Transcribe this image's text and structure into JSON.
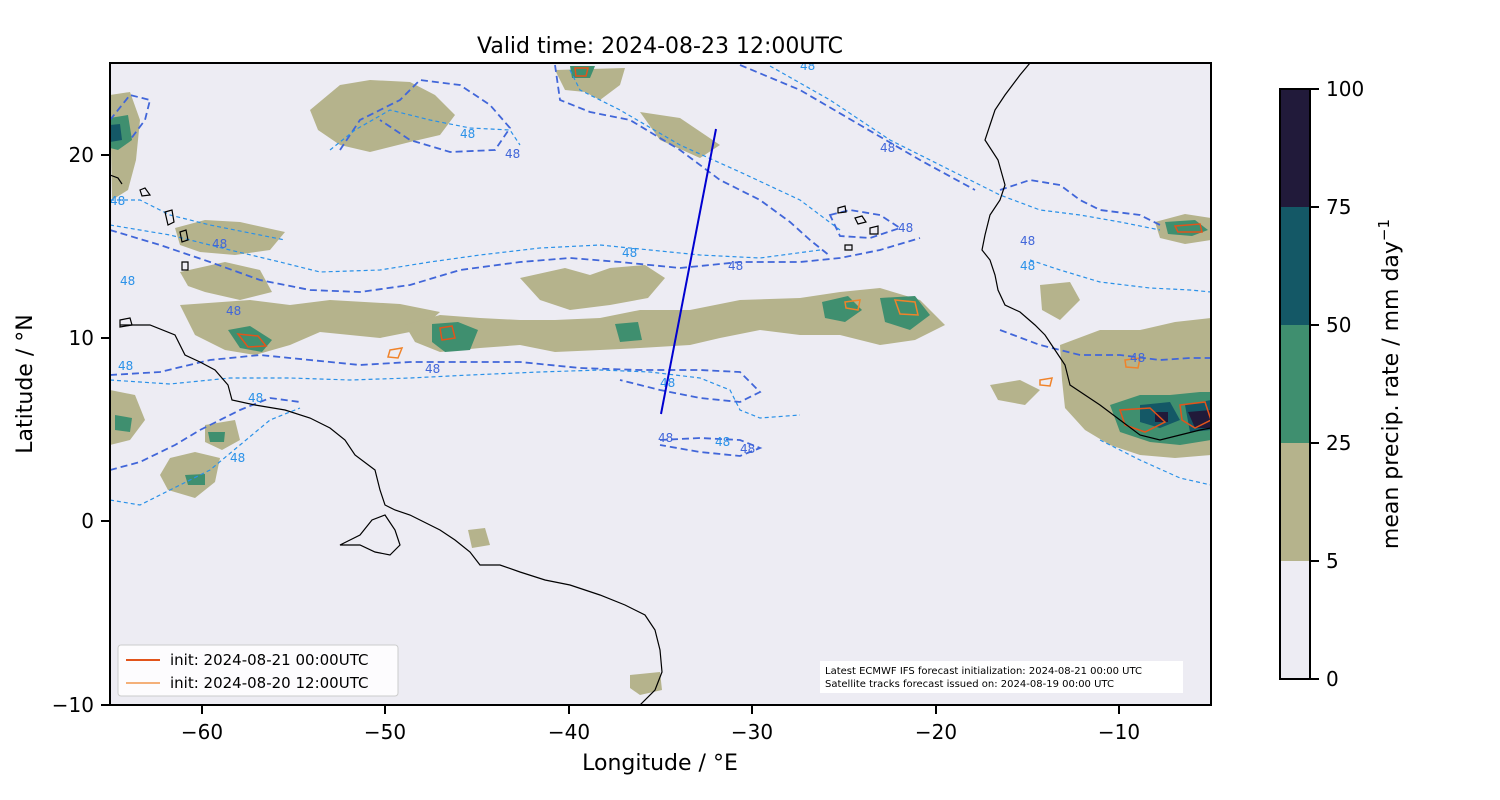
{
  "title": "Valid time: 2024-08-23 12:00UTC",
  "xaxis": {
    "label": "Longitude / °E",
    "ticks": [
      "−60",
      "−50",
      "−40",
      "−30",
      "−20",
      "−10"
    ]
  },
  "yaxis": {
    "label": "Latitude / °N",
    "ticks": [
      "20",
      "10",
      "0",
      "−10"
    ]
  },
  "colorbar": {
    "label": "mean precip. rate / mm day",
    "label_superscript": "−1",
    "ticks": [
      "0",
      "5",
      "25",
      "50",
      "75",
      "100"
    ],
    "colors": [
      "#edecf3",
      "#b5b38c",
      "#3f8f6f",
      "#145866",
      "#211a3a"
    ]
  },
  "legend": [
    {
      "label": "init: 2024-08-21 00:00UTC",
      "color": "#e2541b"
    },
    {
      "label": "init: 2024-08-20 12:00UTC",
      "color": "#f0832a"
    }
  ],
  "note": {
    "line1": "Latest ECMWF IFS forecast initialization: 2024-08-21 00:00 UTC",
    "line2": "Satellite tracks forecast issued on: 2024-08-19 00:00 UTC"
  },
  "contour_value": "48",
  "colors": {
    "background": "#edecf3",
    "precip_low": "#b5b38c",
    "precip_mid": "#3f8f6f",
    "precip_high": "#145866",
    "precip_max": "#211a3a",
    "contour_dark": "#4166d9",
    "contour_light": "#2a91e8",
    "track": "#0000d0",
    "coastline": "#000000"
  },
  "chart_data": {
    "type": "map",
    "xlim": [
      -65,
      -5
    ],
    "ylim": [
      -10,
      25
    ],
    "satellite_track": {
      "start": {
        "lon": -35,
        "lat": 5.8
      },
      "end": {
        "lon": -32,
        "lat": 21.4
      }
    },
    "precip_levels": [
      0,
      5,
      25,
      50,
      75,
      100
    ],
    "iwv_contour_level": 48
  }
}
